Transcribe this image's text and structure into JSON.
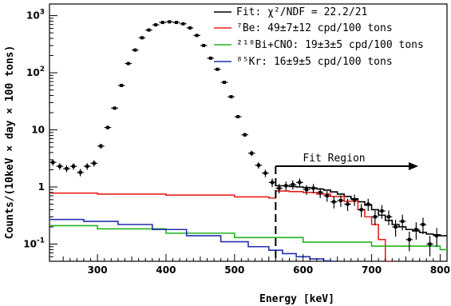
{
  "chart_data": {
    "type": "line",
    "title": "",
    "xlabel": "Energy [keV]",
    "ylabel": "Counts/(10keV × day × 100 tons)",
    "xlim": [
      230,
      810
    ],
    "ylim": [
      0.05,
      1600
    ],
    "yscale": "log",
    "x_ticks": [
      "300",
      "400",
      "500",
      "600",
      "700",
      "800"
    ],
    "x_tick_values": [
      300,
      400,
      500,
      600,
      700,
      800
    ],
    "y_ticks": [
      {
        "mantissa": "10",
        "exp": "-1",
        "value": 0.1
      },
      {
        "mantissa": "1",
        "exp": "",
        "value": 1
      },
      {
        "mantissa": "10",
        "exp": "",
        "value": 10
      },
      {
        "mantissa": "10",
        "exp": "2",
        "value": 100
      },
      {
        "mantissa": "10",
        "exp": "3",
        "value": 1000
      }
    ],
    "grid": false,
    "legend_position": "top-right",
    "legend": [
      {
        "label": "Fit: χ²/NDF = 22.2/21",
        "color": "#000000"
      },
      {
        "label": "⁷Be: 49±7±12 cpd/100 tons",
        "color": "#e8201c"
      },
      {
        "label": "²¹⁰Bi+CNO: 19±3±5 cpd/100 tons",
        "color": "#22b41e"
      },
      {
        "label": "⁸⁵Kr: 16±9±5 cpd/100 tons",
        "color": "#2230b0"
      }
    ],
    "annotation": {
      "text": "Fit Region",
      "fit_start_keV": 560
    },
    "data_points": {
      "x": [
        235,
        245,
        255,
        265,
        275,
        285,
        295,
        305,
        315,
        325,
        335,
        345,
        355,
        365,
        375,
        385,
        395,
        405,
        415,
        425,
        435,
        445,
        455,
        465,
        475,
        485,
        495,
        505,
        515,
        525,
        535,
        545,
        555,
        565,
        575,
        585,
        595,
        605,
        615,
        625,
        635,
        645,
        655,
        665,
        675,
        685,
        695,
        705,
        715,
        725,
        735,
        745,
        755,
        765,
        775,
        785,
        795
      ],
      "y": [
        2.7,
        2.3,
        2.1,
        2.3,
        1.8,
        2.3,
        2.6,
        5.2,
        11,
        24,
        60,
        145,
        250,
        410,
        560,
        690,
        760,
        780,
        760,
        720,
        610,
        450,
        300,
        180,
        115,
        68,
        38,
        17,
        8.2,
        3.9,
        2.4,
        1.75,
        1.2,
        0.95,
        1.05,
        1.1,
        1.2,
        0.9,
        0.95,
        0.8,
        0.7,
        0.55,
        0.58,
        0.5,
        0.6,
        0.4,
        0.5,
        0.3,
        0.38,
        0.3,
        0.2,
        0.25,
        0.12,
        0.18,
        0.22,
        0.1,
        0.14
      ],
      "xerr": 5
    },
    "series": [
      {
        "name": "Fit",
        "color": "#000000",
        "x": [
          560,
          570,
          580,
          590,
          600,
          610,
          620,
          630,
          640,
          650,
          660,
          670,
          680,
          690,
          700,
          710,
          720,
          730,
          740,
          750,
          760,
          770,
          780,
          790,
          800,
          810
        ],
        "y": [
          1.05,
          1.05,
          1.02,
          1.0,
          0.98,
          0.96,
          0.92,
          0.88,
          0.82,
          0.75,
          0.68,
          0.62,
          0.55,
          0.48,
          0.4,
          0.32,
          0.26,
          0.22,
          0.2,
          0.18,
          0.17,
          0.16,
          0.15,
          0.145,
          0.14,
          0.14
        ]
      },
      {
        "name": "⁷Be",
        "color": "#e8201c",
        "x": [
          230,
          300,
          400,
          500,
          550,
          560,
          580,
          600,
          620,
          640,
          660,
          680,
          690,
          700,
          710,
          720
        ],
        "y": [
          0.78,
          0.75,
          0.72,
          0.67,
          0.64,
          0.85,
          0.83,
          0.8,
          0.75,
          0.68,
          0.56,
          0.4,
          0.3,
          0.22,
          0.12,
          0.05
        ]
      },
      {
        "name": "²¹⁰Bi+CNO",
        "color": "#22b41e",
        "x": [
          230,
          300,
          400,
          500,
          600,
          700,
          800,
          810
        ],
        "y": [
          0.21,
          0.185,
          0.155,
          0.13,
          0.108,
          0.092,
          0.08,
          0.079
        ]
      },
      {
        "name": "⁸⁵Kr",
        "color": "#2230b0",
        "x": [
          230,
          280,
          330,
          380,
          430,
          480,
          520,
          550,
          570,
          590,
          610,
          630,
          640
        ],
        "y": [
          0.27,
          0.25,
          0.22,
          0.18,
          0.14,
          0.11,
          0.09,
          0.078,
          0.068,
          0.06,
          0.055,
          0.051,
          0.05
        ]
      }
    ]
  }
}
